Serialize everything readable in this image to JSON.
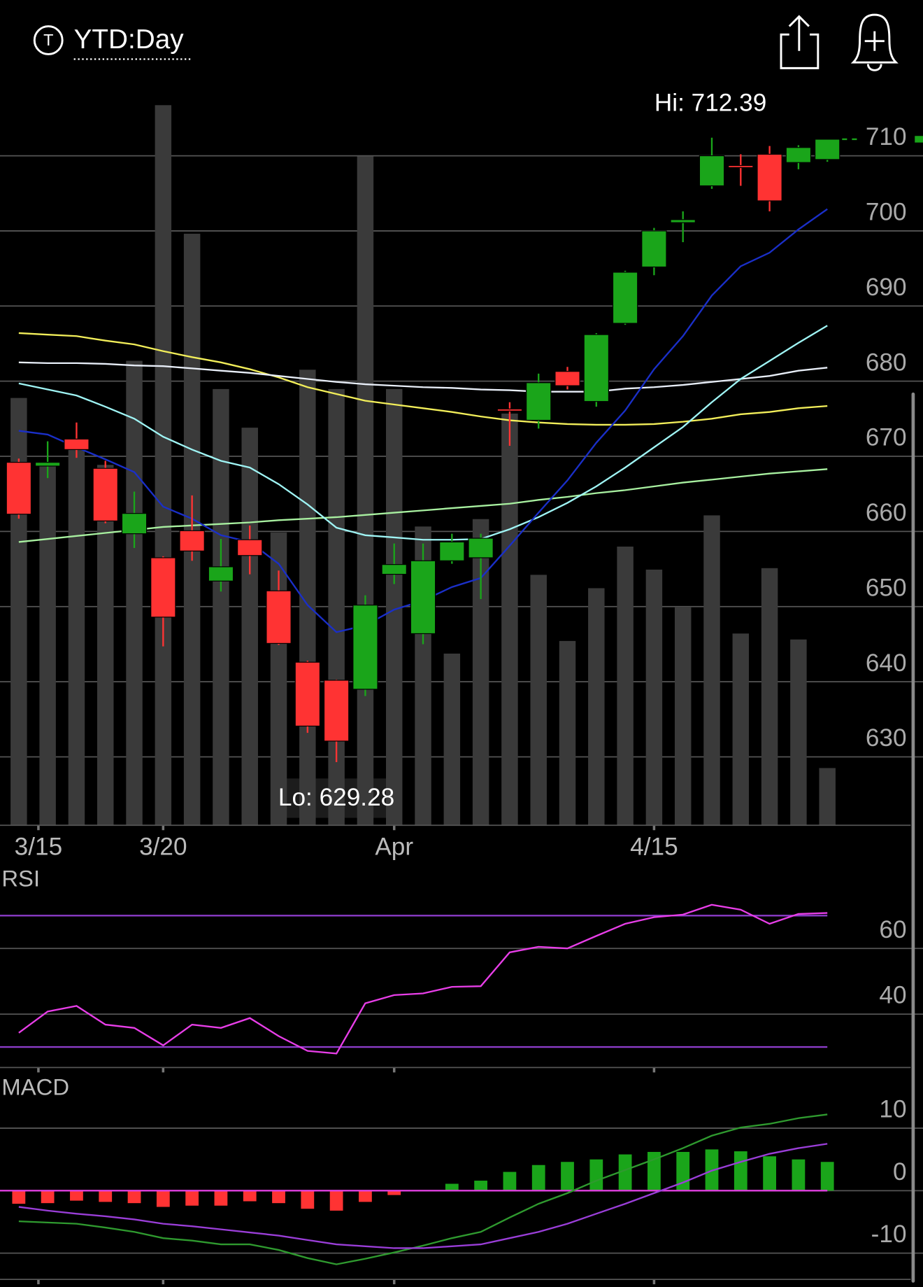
{
  "header": {
    "icon": "T",
    "title": "YTD:Day"
  },
  "chart_data": [
    {
      "type": "candlestick",
      "annotations": [
        "Hi: 712.39",
        "Lo: 629.28"
      ],
      "open": [
        669.2,
        668.7,
        672.3,
        668.4,
        659.7,
        656.5,
        660.1,
        653.4,
        658.9,
        652.1,
        642.6,
        640.2,
        639.0,
        654.3,
        646.4,
        656.1,
        656.5,
        676.3,
        674.8,
        681.3,
        677.3,
        687.7,
        695.2,
        701.1,
        706.0,
        708.7,
        710.2,
        709.1,
        709.5
      ],
      "high": [
        669.7,
        672.0,
        674.5,
        669.4,
        665.3,
        656.7,
        664.8,
        659.0,
        660.8,
        654.8,
        642.8,
        640.3,
        651.5,
        658.4,
        658.4,
        659.7,
        659.7,
        677.2,
        681.0,
        681.9,
        686.4,
        694.7,
        700.4,
        702.6,
        712.4,
        710.2,
        711.3,
        711.4,
        712.2
      ],
      "low": [
        661.7,
        667.1,
        669.8,
        661.1,
        657.8,
        644.7,
        656.1,
        652.0,
        654.3,
        644.9,
        633.2,
        629.3,
        638.1,
        653.0,
        645.0,
        655.7,
        651.0,
        671.4,
        673.7,
        678.9,
        676.6,
        687.5,
        694.1,
        698.5,
        705.6,
        706.0,
        702.6,
        708.2,
        709.2
      ],
      "close": [
        662.3,
        669.2,
        670.9,
        661.4,
        662.4,
        648.6,
        657.4,
        655.3,
        656.8,
        645.1,
        634.1,
        632.1,
        650.2,
        655.6,
        656.1,
        658.6,
        659.1,
        676.1,
        679.8,
        679.4,
        686.2,
        694.5,
        700.0,
        701.5,
        710.0,
        708.5,
        704.0,
        711.1,
        712.2
      ],
      "up_color": "#1aa51a",
      "down_color": "#ff3333",
      "volume": {
        "values": [
          57.5,
          48.5,
          51.3,
          48.5,
          62.5,
          96.9,
          79.6,
          58.7,
          53.5,
          39.4,
          61.3,
          58.7,
          90.0,
          58.7,
          40.2,
          23.1,
          41.2,
          55.4,
          33.7,
          24.8,
          31.9,
          37.5,
          34.4,
          29.4,
          41.7,
          25.8,
          34.6,
          25.0,
          7.7
        ],
        "ylim": [
          0,
          100
        ],
        "color": "#3a3a3a"
      },
      "series": [
        {
          "color": "#a8f0a0",
          "values": [
            658.6,
            659.0,
            659.4,
            659.8,
            660.2,
            660.6,
            660.8,
            661.0,
            661.2,
            661.5,
            661.7,
            661.9,
            662.2,
            662.5,
            662.8,
            663.1,
            663.4,
            663.7,
            664.2,
            664.6,
            665.1,
            665.5,
            666.0,
            666.5,
            666.9,
            667.3,
            667.7,
            668.0,
            668.3
          ]
        },
        {
          "color": "#f2ee5a",
          "values": [
            686.4,
            686.2,
            686.0,
            685.4,
            684.9,
            684.0,
            683.2,
            682.5,
            681.6,
            680.5,
            679.2,
            678.3,
            677.4,
            676.9,
            676.4,
            675.9,
            675.3,
            674.8,
            674.5,
            674.3,
            674.2,
            674.2,
            674.3,
            674.6,
            675.0,
            675.6,
            675.9,
            676.4,
            676.7
          ]
        },
        {
          "color": "#e8eef8",
          "values": [
            682.5,
            682.4,
            682.4,
            682.3,
            682.1,
            682.0,
            681.7,
            681.4,
            681.1,
            680.7,
            680.3,
            679.9,
            679.6,
            679.4,
            679.2,
            679.1,
            678.9,
            678.8,
            678.6,
            678.6,
            678.6,
            679.0,
            679.2,
            679.5,
            679.9,
            680.3,
            680.7,
            681.4,
            681.8
          ]
        },
        {
          "color": "#9ff4f4",
          "values": [
            679.7,
            678.9,
            678.1,
            676.6,
            675.0,
            672.6,
            670.9,
            669.4,
            668.5,
            666.3,
            663.6,
            660.5,
            659.5,
            659.2,
            658.9,
            658.9,
            659.0,
            660.3,
            661.9,
            663.8,
            666.0,
            668.5,
            671.2,
            673.9,
            677.2,
            680.3,
            682.7,
            685.1,
            687.4
          ]
        },
        {
          "color": "#1a2fc8",
          "values": [
            673.4,
            672.9,
            671.2,
            669.6,
            667.9,
            663.3,
            661.7,
            659.5,
            658.6,
            655.7,
            650.2,
            646.6,
            647.5,
            649.6,
            650.8,
            652.6,
            653.8,
            658.1,
            662.5,
            666.8,
            671.8,
            676.1,
            681.6,
            686.0,
            691.4,
            695.3,
            697.1,
            700.2,
            702.9
          ]
        }
      ],
      "xlim": [
        -0.65,
        31
      ],
      "xticks": [
        {
          "value": 0.68,
          "label": "3/15"
        },
        {
          "value": 5.0,
          "label": "3/20"
        },
        {
          "value": 13.0,
          "label": "Apr"
        },
        {
          "value": 22.0,
          "label": "4/15"
        }
      ],
      "ylim": [
        620.9,
        719.8
      ],
      "yticks": [
        630,
        640,
        650,
        660,
        670,
        680,
        690,
        700,
        710
      ],
      "grid": true
    },
    {
      "type": "line",
      "title": "RSI",
      "series": [
        {
          "color": "#e83ee8",
          "values": [
            34.3,
            40.8,
            42.5,
            36.8,
            35.8,
            30.5,
            36.8,
            35.8,
            38.8,
            33.3,
            28.8,
            28.0,
            43.3,
            45.8,
            46.3,
            48.3,
            48.5,
            58.8,
            60.5,
            60.0,
            63.8,
            67.5,
            69.5,
            70.3,
            73.3,
            71.8,
            67.5,
            70.5,
            70.8
          ]
        }
      ],
      "levels": [
        70,
        30
      ],
      "level_color": "#8b3cc8",
      "ylim": [
        23.75,
        83.75
      ],
      "yticks": [
        40,
        60
      ],
      "grid": true
    },
    {
      "type": "macd",
      "title": "MACD",
      "histogram": [
        -2.1,
        -2.0,
        -1.6,
        -1.8,
        -2.0,
        -2.6,
        -2.4,
        -2.4,
        -1.7,
        -2.0,
        -2.9,
        -3.2,
        -1.8,
        -0.7,
        0.1,
        1.1,
        1.6,
        3.0,
        4.1,
        4.6,
        5.0,
        5.8,
        6.2,
        6.2,
        6.6,
        6.3,
        5.5,
        5.0,
        4.6
      ],
      "up_color": "#1aa51a",
      "down_color": "#ff3333",
      "baseline_color": "#e040e0",
      "series": [
        {
          "color": "#2f9a2f",
          "values": [
            -4.9,
            -5.1,
            -5.3,
            -5.9,
            -6.6,
            -7.6,
            -8.0,
            -8.6,
            -8.6,
            -9.5,
            -10.8,
            -11.8,
            -10.9,
            -9.9,
            -8.8,
            -7.6,
            -6.6,
            -4.3,
            -2.1,
            -0.4,
            1.6,
            3.3,
            5.0,
            6.8,
            8.8,
            10.1,
            10.7,
            11.6,
            12.2
          ]
        },
        {
          "color": "#9a3ed8",
          "values": [
            -2.6,
            -3.2,
            -3.7,
            -4.1,
            -4.6,
            -5.3,
            -5.7,
            -6.2,
            -6.7,
            -7.2,
            -7.9,
            -8.6,
            -8.9,
            -9.2,
            -9.2,
            -8.9,
            -8.6,
            -7.6,
            -6.6,
            -5.3,
            -3.7,
            -2.1,
            -0.4,
            1.3,
            3.2,
            4.6,
            5.9,
            6.8,
            7.5
          ]
        }
      ],
      "ylim": [
        -14.2,
        18.4
      ],
      "yticks": [
        -10,
        0,
        10
      ],
      "grid": true
    }
  ]
}
